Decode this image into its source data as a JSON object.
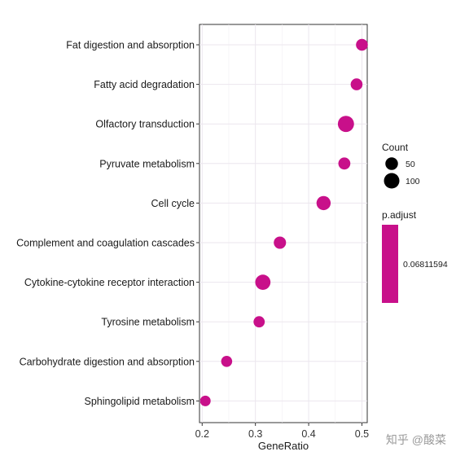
{
  "chart_data": {
    "type": "scatter",
    "title": "",
    "xlabel": "GeneRatio",
    "ylabel": "",
    "xlim": [
      0.195,
      0.51
    ],
    "xticks": [
      0.2,
      0.3,
      0.4,
      0.5
    ],
    "xtick_labels": [
      "0.2",
      "0.3",
      "0.4",
      "0.5"
    ],
    "grid": true,
    "legend_position": "right",
    "categories": [
      "Fat digestion and absorption",
      "Fatty acid degradation",
      "Olfactory transduction",
      "Pyruvate metabolism",
      "Cell cycle",
      "Complement and coagulation cascades",
      "Cytokine-cytokine receptor interaction",
      "Tyrosine metabolism",
      "Carbohydrate digestion and absorption",
      "Sphingolipid metabolism"
    ],
    "x": [
      0.5,
      0.49,
      0.47,
      0.467,
      0.428,
      0.346,
      0.314,
      0.307,
      0.246,
      0.206
    ],
    "count": [
      40,
      40,
      115,
      42,
      75,
      45,
      95,
      32,
      30,
      25
    ],
    "point_color": "#C8108A",
    "size_legend": {
      "title": "Count",
      "values": [
        50,
        100
      ],
      "labels": [
        "50",
        "100"
      ]
    },
    "color_legend": {
      "title": "p.adjust",
      "labels": [
        "0.06811594"
      ],
      "color": "#C8108A"
    }
  },
  "watermark": "知乎 @酸菜"
}
